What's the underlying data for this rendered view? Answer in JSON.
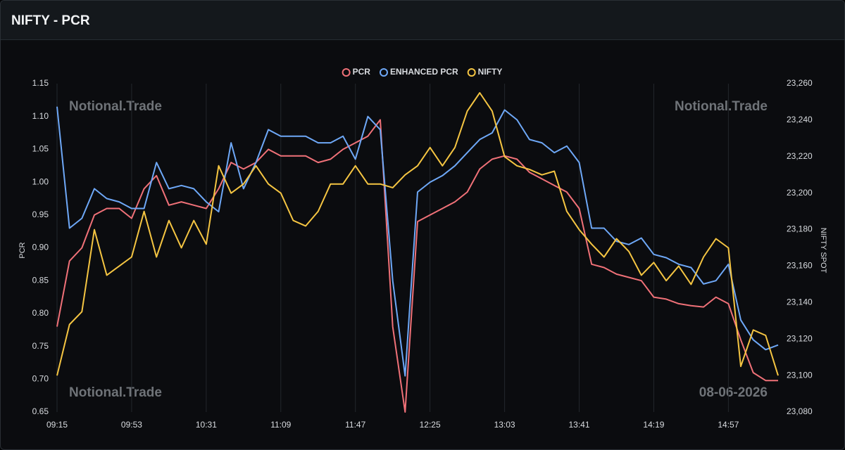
{
  "header": {
    "title": "NIFTY - PCR"
  },
  "chart_data": {
    "type": "line",
    "y_label": "PCR",
    "y2_label": "NIFTY SPOT",
    "annotations": [
      "Notional.Trade",
      "Notional.Trade",
      "Notional.Trade",
      "08-06-2026"
    ],
    "grid": "x",
    "categories": [
      "09:15",
      null,
      null,
      null,
      null,
      null,
      "09:53",
      null,
      null,
      null,
      null,
      null,
      "10:31",
      null,
      null,
      null,
      null,
      null,
      "11:09",
      null,
      null,
      null,
      null,
      null,
      "11:47",
      null,
      null,
      null,
      null,
      null,
      "12:25",
      null,
      null,
      null,
      null,
      null,
      "13:03",
      null,
      null,
      null,
      null,
      null,
      "13:41",
      null,
      null,
      null,
      null,
      null,
      "14:19",
      null,
      null,
      null,
      null,
      null,
      "14:57",
      null,
      null,
      null,
      null
    ],
    "ylim": [
      0.65,
      1.15
    ],
    "yticks": [
      0.65,
      {
        "value": 0.7,
        "label": "0.70"
      },
      0.75,
      {
        "value": 0.8,
        "label": "0.80"
      },
      0.85,
      {
        "value": 0.9,
        "label": "0.90"
      },
      0.95,
      {
        "value": 1.0,
        "label": "1.00"
      },
      1.05,
      {
        "value": 1.1,
        "label": "1.10"
      },
      1.15
    ],
    "y2lim": [
      23080,
      23260
    ],
    "y2ticks": [
      {
        "value": 23080,
        "label": "23,080"
      },
      {
        "value": 23100,
        "label": "23,100"
      },
      {
        "value": 23120,
        "label": "23,120"
      },
      {
        "value": 23140,
        "label": "23,140"
      },
      {
        "value": 23160,
        "label": "23,160"
      },
      {
        "value": 23180,
        "label": "23,180"
      },
      {
        "value": 23200,
        "label": "23,200"
      },
      {
        "value": 23220,
        "label": "23,220"
      },
      {
        "value": 23240,
        "label": "23,240"
      },
      {
        "value": 23260,
        "label": "23,260"
      }
    ],
    "series": [
      {
        "name": "PCR",
        "color": "#f07178",
        "values": [
          0.78,
          0.88,
          0.9,
          0.95,
          0.96,
          0.96,
          0.945,
          0.99,
          1.01,
          0.965,
          0.97,
          0.965,
          0.96,
          0.99,
          1.03,
          1.02,
          1.03,
          1.05,
          1.04,
          1.04,
          1.04,
          1.03,
          1.035,
          1.05,
          1.06,
          1.07,
          1.095,
          0.78,
          0.65,
          0.94,
          0.95,
          0.96,
          0.97,
          0.985,
          1.02,
          1.035,
          1.04,
          1.035,
          1.015,
          1.005,
          0.995,
          0.985,
          0.96,
          0.875,
          0.87,
          0.86,
          0.855,
          0.85,
          0.825,
          0.822,
          0.815,
          0.812,
          0.81,
          0.825,
          0.815,
          0.76,
          0.71,
          0.698,
          0.698
        ]
      },
      {
        "name": "ENHANCED PCR",
        "color": "#6ea8f7",
        "values": [
          1.115,
          0.93,
          0.945,
          0.99,
          0.975,
          0.97,
          0.96,
          0.96,
          1.03,
          0.99,
          0.995,
          0.99,
          0.97,
          0.955,
          1.06,
          0.99,
          1.03,
          1.08,
          1.07,
          1.07,
          1.07,
          1.06,
          1.06,
          1.07,
          1.035,
          1.1,
          1.08,
          0.85,
          0.705,
          0.985,
          1.0,
          1.01,
          1.025,
          1.045,
          1.065,
          1.075,
          1.11,
          1.095,
          1.065,
          1.06,
          1.045,
          1.055,
          1.03,
          0.93,
          0.93,
          0.91,
          0.905,
          0.915,
          0.89,
          0.885,
          0.875,
          0.87,
          0.845,
          0.85,
          0.875,
          0.79,
          0.76,
          0.745,
          0.752
        ]
      },
      {
        "name": "NIFTY",
        "color": "#f5c542",
        "axis": "y2",
        "values": [
          23100,
          23128,
          23135,
          23180,
          23155,
          23160,
          23165,
          23190,
          23165,
          23185,
          23170,
          23185,
          23172,
          23215,
          23200,
          23205,
          23215,
          23205,
          23200,
          23185,
          23182,
          23190,
          23205,
          23205,
          23215,
          23205,
          23205,
          23203,
          23210,
          23215,
          23225,
          23215,
          23225,
          23245,
          23255,
          23245,
          23220,
          23215,
          23213,
          23210,
          23212,
          23190,
          23180,
          23172,
          23165,
          23175,
          23168,
          23155,
          23162,
          23152,
          23160,
          23150,
          23165,
          23175,
          23170,
          23105,
          23125,
          23122,
          23100
        ]
      }
    ]
  }
}
